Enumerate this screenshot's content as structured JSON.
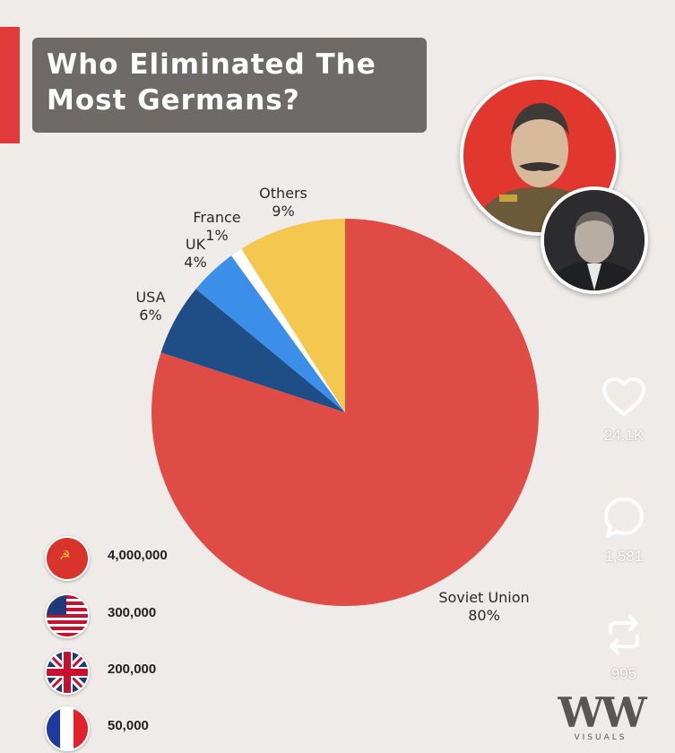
{
  "header": {
    "title_line1": "Who Eliminated The",
    "title_line2": "Most Germans?"
  },
  "chart_data": {
    "type": "pie",
    "title": "Who Eliminated The Most Germans?",
    "slices": [
      {
        "label": "Soviet Union",
        "pct_text": "80%",
        "value": 80,
        "color": "#df4b45"
      },
      {
        "label": "USA",
        "pct_text": "6%",
        "value": 6,
        "color": "#1e4e85"
      },
      {
        "label": "UK",
        "pct_text": "4%",
        "value": 4,
        "color": "#3b8fe8"
      },
      {
        "label": "France",
        "pct_text": "1%",
        "value": 1,
        "color": "#ffffff"
      },
      {
        "label": "Others",
        "pct_text": "9%",
        "value": 9,
        "color": "#f4c74f"
      }
    ]
  },
  "legend": [
    {
      "flag": "soviet-flag-icon",
      "value": "4,000,000"
    },
    {
      "flag": "usa-flag-icon",
      "value": "300,000"
    },
    {
      "flag": "uk-flag-icon",
      "value": "200,000"
    },
    {
      "flag": "france-flag-icon",
      "value": "50,000"
    }
  ],
  "actions": {
    "likes": "24.1K",
    "comments": "1,581",
    "reposts": "995"
  },
  "brand": {
    "logo_text": "WW",
    "logo_sub": "VISUALS"
  },
  "colors": {
    "accent": "#e03a3a",
    "title_bg": "#6e6a68",
    "background": "#eeebe8"
  }
}
